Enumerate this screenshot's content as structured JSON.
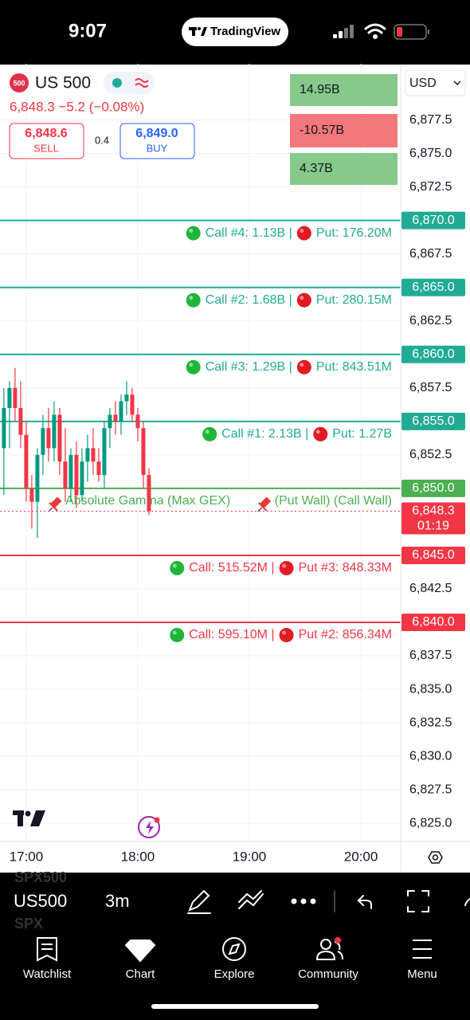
{
  "status_bar": {
    "time": "9:07",
    "app": "TradingView"
  },
  "header": {
    "symbol_icon": "500",
    "symbol": "US 500",
    "quote": "6,848.3 −5.2 (−0.08%)",
    "sell_price": "6,848.6",
    "sell_label": "SELL",
    "spread": "0.4",
    "buy_price": "6,849.0",
    "buy_label": "BUY",
    "currency": "USD"
  },
  "summary_boxes": [
    {
      "text": "14.95B",
      "color": "#86c98a"
    },
    {
      "text": "-10.57B",
      "color": "#f4777b"
    },
    {
      "text": "4.37B",
      "color": "#86c98a"
    }
  ],
  "chart_data": {
    "type": "candlestick",
    "up_color": "#089981",
    "down_color": "#f23645",
    "grid": true,
    "xlim": [
      1005.9,
      1221.4
    ],
    "xticks": [
      {
        "value": 1020,
        "label": "17:00"
      },
      {
        "value": 1080,
        "label": "18:00"
      },
      {
        "value": 1140,
        "label": "19:00"
      },
      {
        "value": 1200,
        "label": "20:00"
      }
    ],
    "ylim": [
      6823.7,
      6881.7
    ],
    "yticks": [
      {
        "value": 6877.5,
        "label": "6,877.5"
      },
      {
        "value": 6875.0,
        "label": "6,875.0"
      },
      {
        "value": 6872.5,
        "label": "6,872.5"
      },
      {
        "value": 6867.5,
        "label": "6,867.5"
      },
      {
        "value": 6862.5,
        "label": "6,862.5"
      },
      {
        "value": 6857.5,
        "label": "6,857.5"
      },
      {
        "value": 6852.5,
        "label": "6,852.5"
      },
      {
        "value": 6842.5,
        "label": "6,842.5"
      },
      {
        "value": 6837.5,
        "label": "6,837.5"
      },
      {
        "value": 6835.0,
        "label": "6,835.0"
      },
      {
        "value": 6832.5,
        "label": "6,832.5"
      },
      {
        "value": 6830.0,
        "label": "6,830.0"
      },
      {
        "value": 6827.5,
        "label": "6,827.5"
      },
      {
        "value": 6825.0,
        "label": "6,825.0"
      }
    ],
    "x": [
      1008,
      1011,
      1014,
      1017,
      1020,
      1023,
      1026,
      1029,
      1032,
      1035,
      1038,
      1041,
      1044,
      1047,
      1050,
      1053,
      1056,
      1059,
      1062,
      1065,
      1068,
      1071,
      1074,
      1077,
      1080,
      1083,
      1086
    ],
    "open": [
      6853,
      6856,
      6857.5,
      6856,
      6854,
      6850,
      6849,
      6852.5,
      6854.5,
      6853,
      6855.5,
      6852,
      6850,
      6852.5,
      6849.5,
      6852,
      6853,
      6852,
      6851,
      6854.5,
      6855.5,
      6855,
      6856.5,
      6857,
      6855.5,
      6854.5,
      6851
    ],
    "high": [
      6857.5,
      6858,
      6859,
      6858,
      6855,
      6851,
      6853,
      6855.5,
      6856,
      6856.5,
      6856,
      6854.5,
      6853,
      6853.5,
      6853,
      6854,
      6854.5,
      6853,
      6855,
      6856,
      6856.5,
      6857,
      6858,
      6857.5,
      6856,
      6855,
      6851.5
    ],
    "low": [
      6849.5,
      6853,
      6855,
      6853,
      6849,
      6847,
      6846.3,
      6851,
      6852,
      6852,
      6851,
      6849,
      6849,
      6848.5,
      6849,
      6850.5,
      6851,
      6850.5,
      6850,
      6853,
      6854,
      6854,
      6855.5,
      6855,
      6853.5,
      6850,
      6848
    ],
    "close": [
      6856,
      6857.5,
      6856,
      6854,
      6850,
      6849,
      6852.5,
      6854.5,
      6853,
      6855.5,
      6852,
      6850,
      6852.5,
      6849.5,
      6852,
      6853,
      6852,
      6851,
      6854.5,
      6855.5,
      6855,
      6856.5,
      6857,
      6855.5,
      6854.5,
      6851,
      6848.3
    ],
    "levels": [
      {
        "value": 6870,
        "label": "6,870.0",
        "color": "#22ab94",
        "call": "Call #4: 1.13B |",
        "put": "Put: 176.20M"
      },
      {
        "value": 6865,
        "label": "6,865.0",
        "color": "#22ab94",
        "call": "Call #2: 1.68B |",
        "put": "Put: 280.15M"
      },
      {
        "value": 6860,
        "label": "6,860.0",
        "color": "#22ab94",
        "call": "Call #3: 1.29B |",
        "put": "Put: 843.51M"
      },
      {
        "value": 6855,
        "label": "6,855.0",
        "color": "#22ab94",
        "call": "Call #1: 2.13B |",
        "put": "Put: 1.27B"
      },
      {
        "value": 6850,
        "label": "6,850.0",
        "color": "#4caf50",
        "annotation": "Absolute Gamma (Max GEX)",
        "annotation_2": "(Put Wall) (Call Wall)"
      },
      {
        "value": 6845,
        "label": "6,845.0",
        "color": "#f23645",
        "call": "Call: 515.52M |",
        "put": "Put #3: 848.33M"
      },
      {
        "value": 6840,
        "label": "6,840.0",
        "color": "#f23645",
        "call": "Call: 595.10M |",
        "put": "Put #2: 856.34M"
      }
    ],
    "last_price": {
      "value": 6848.3,
      "label": "6,848.3",
      "countdown": "01:19",
      "color": "#f23645"
    }
  },
  "toolbar": {
    "ghost_top": "SPX500",
    "symbol": "US500",
    "interval": "3m",
    "ghost_bottom": "SPX"
  },
  "tab_bar": [
    "Watchlist",
    "Chart",
    "Explore",
    "Community",
    "Menu"
  ]
}
